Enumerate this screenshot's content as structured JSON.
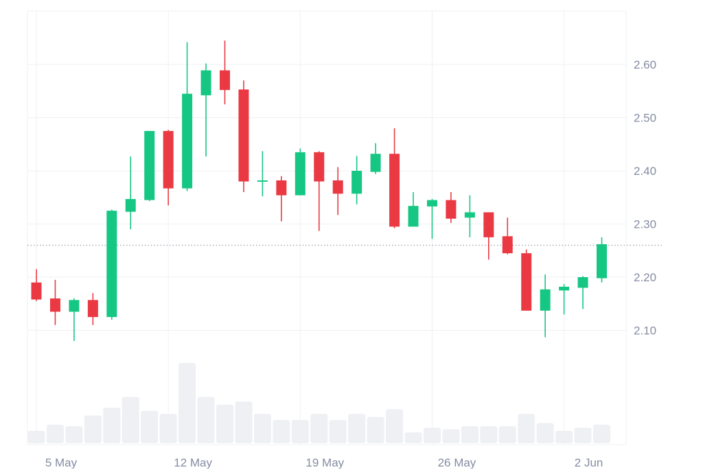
{
  "colors": {
    "up": "#16c784",
    "down": "#ea3943",
    "volume": "#eff0f4",
    "grid": "#eef0f3",
    "axis_text": "#858ca2",
    "reference_line": "#9aa0ad"
  },
  "chart_data": {
    "type": "candlestick",
    "title": "",
    "xlabel": "",
    "ylabel": "",
    "ylim": [
      2.0,
      2.7
    ],
    "y_ticks": [
      "2.10",
      "2.20",
      "2.30",
      "2.40",
      "2.50",
      "2.60"
    ],
    "x_tick_labels": [
      {
        "day": 0,
        "label": "5 May"
      },
      {
        "day": 7,
        "label": "12 May"
      },
      {
        "day": 14,
        "label": "19 May"
      },
      {
        "day": 21,
        "label": "26 May"
      },
      {
        "day": 28,
        "label": "2 Jun"
      }
    ],
    "reference_price": 2.26,
    "grid": true,
    "candles": [
      {
        "date": "2025-05-05",
        "open": 2.19,
        "high": 2.215,
        "low": 2.155,
        "close": 2.158,
        "volume": 8
      },
      {
        "date": "2025-05-06",
        "open": 2.16,
        "high": 2.195,
        "low": 2.11,
        "close": 2.135,
        "volume": 12
      },
      {
        "date": "2025-05-07",
        "open": 2.135,
        "high": 2.16,
        "low": 2.08,
        "close": 2.157,
        "volume": 11
      },
      {
        "date": "2025-05-08",
        "open": 2.157,
        "high": 2.17,
        "low": 2.11,
        "close": 2.125,
        "volume": 18
      },
      {
        "date": "2025-05-09",
        "open": 2.125,
        "high": 2.327,
        "low": 2.12,
        "close": 2.325,
        "volume": 23
      },
      {
        "date": "2025-05-10",
        "open": 2.323,
        "high": 2.427,
        "low": 2.29,
        "close": 2.347,
        "volume": 30
      },
      {
        "date": "2025-05-11",
        "open": 2.345,
        "high": 2.475,
        "low": 2.343,
        "close": 2.475,
        "volume": 21
      },
      {
        "date": "2025-05-12",
        "open": 2.475,
        "high": 2.477,
        "low": 2.335,
        "close": 2.367,
        "volume": 19
      },
      {
        "date": "2025-05-13",
        "open": 2.367,
        "high": 2.642,
        "low": 2.362,
        "close": 2.545,
        "volume": 52
      },
      {
        "date": "2025-05-14",
        "open": 2.542,
        "high": 2.602,
        "low": 2.427,
        "close": 2.589,
        "volume": 30
      },
      {
        "date": "2025-05-15",
        "open": 2.589,
        "high": 2.645,
        "low": 2.525,
        "close": 2.552,
        "volume": 25
      },
      {
        "date": "2025-05-16",
        "open": 2.553,
        "high": 2.57,
        "low": 2.36,
        "close": 2.38,
        "volume": 27
      },
      {
        "date": "2025-05-17",
        "open": 2.38,
        "high": 2.437,
        "low": 2.352,
        "close": 2.382,
        "volume": 19
      },
      {
        "date": "2025-05-18",
        "open": 2.382,
        "high": 2.39,
        "low": 2.305,
        "close": 2.354,
        "volume": 15
      },
      {
        "date": "2025-05-19",
        "open": 2.354,
        "high": 2.442,
        "low": 2.354,
        "close": 2.435,
        "volume": 15
      },
      {
        "date": "2025-05-20",
        "open": 2.435,
        "high": 2.437,
        "low": 2.287,
        "close": 2.38,
        "volume": 19
      },
      {
        "date": "2025-05-21",
        "open": 2.382,
        "high": 2.407,
        "low": 2.317,
        "close": 2.357,
        "volume": 15
      },
      {
        "date": "2025-05-22",
        "open": 2.357,
        "high": 2.428,
        "low": 2.337,
        "close": 2.4,
        "volume": 19
      },
      {
        "date": "2025-05-23",
        "open": 2.398,
        "high": 2.452,
        "low": 2.394,
        "close": 2.432,
        "volume": 17
      },
      {
        "date": "2025-05-24",
        "open": 2.432,
        "high": 2.48,
        "low": 2.292,
        "close": 2.295,
        "volume": 22
      },
      {
        "date": "2025-05-25",
        "open": 2.295,
        "high": 2.36,
        "low": 2.295,
        "close": 2.334,
        "volume": 7
      },
      {
        "date": "2025-05-26",
        "open": 2.333,
        "high": 2.347,
        "low": 2.272,
        "close": 2.345,
        "volume": 10
      },
      {
        "date": "2025-05-27",
        "open": 2.345,
        "high": 2.36,
        "low": 2.302,
        "close": 2.31,
        "volume": 9
      },
      {
        "date": "2025-05-28",
        "open": 2.312,
        "high": 2.354,
        "low": 2.275,
        "close": 2.322,
        "volume": 11
      },
      {
        "date": "2025-05-29",
        "open": 2.322,
        "high": 2.322,
        "low": 2.233,
        "close": 2.275,
        "volume": 11
      },
      {
        "date": "2025-05-30",
        "open": 2.277,
        "high": 2.312,
        "low": 2.243,
        "close": 2.245,
        "volume": 11
      },
      {
        "date": "2025-05-31",
        "open": 2.245,
        "high": 2.252,
        "low": 2.137,
        "close": 2.137,
        "volume": 19
      },
      {
        "date": "2025-06-01",
        "open": 2.137,
        "high": 2.205,
        "low": 2.087,
        "close": 2.177,
        "volume": 13
      },
      {
        "date": "2025-06-02",
        "open": 2.175,
        "high": 2.187,
        "low": 2.13,
        "close": 2.182,
        "volume": 8
      },
      {
        "date": "2025-06-03",
        "open": 2.18,
        "high": 2.202,
        "low": 2.14,
        "close": 2.2,
        "volume": 10
      },
      {
        "date": "2025-06-04",
        "open": 2.198,
        "high": 2.275,
        "low": 2.19,
        "close": 2.262,
        "volume": 12
      }
    ]
  }
}
